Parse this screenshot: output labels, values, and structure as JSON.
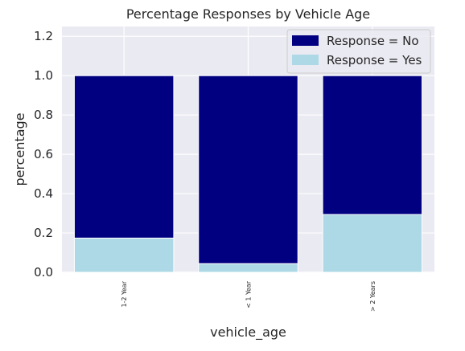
{
  "chart_data": {
    "type": "bar",
    "stacked": true,
    "title": "Percentage Responses by Vehicle Age",
    "xlabel": "vehicle_age",
    "ylabel": "percentage",
    "categories": [
      "1-2 Year",
      "< 1 Year",
      "> 2 Years"
    ],
    "ylim": [
      0,
      1.25
    ],
    "yticks": [
      "0.0",
      "0.2",
      "0.4",
      "0.6",
      "0.8",
      "1.0",
      "1.2"
    ],
    "grid": true,
    "legend_position": "top-right",
    "background_color": "#eaeaf2",
    "series": [
      {
        "name": "Response = No",
        "color": "#000080",
        "values": [
          0.826,
          0.956,
          0.706
        ]
      },
      {
        "name": "Response = Yes",
        "color": "#add8e6",
        "values": [
          0.174,
          0.044,
          0.294
        ]
      }
    ]
  }
}
